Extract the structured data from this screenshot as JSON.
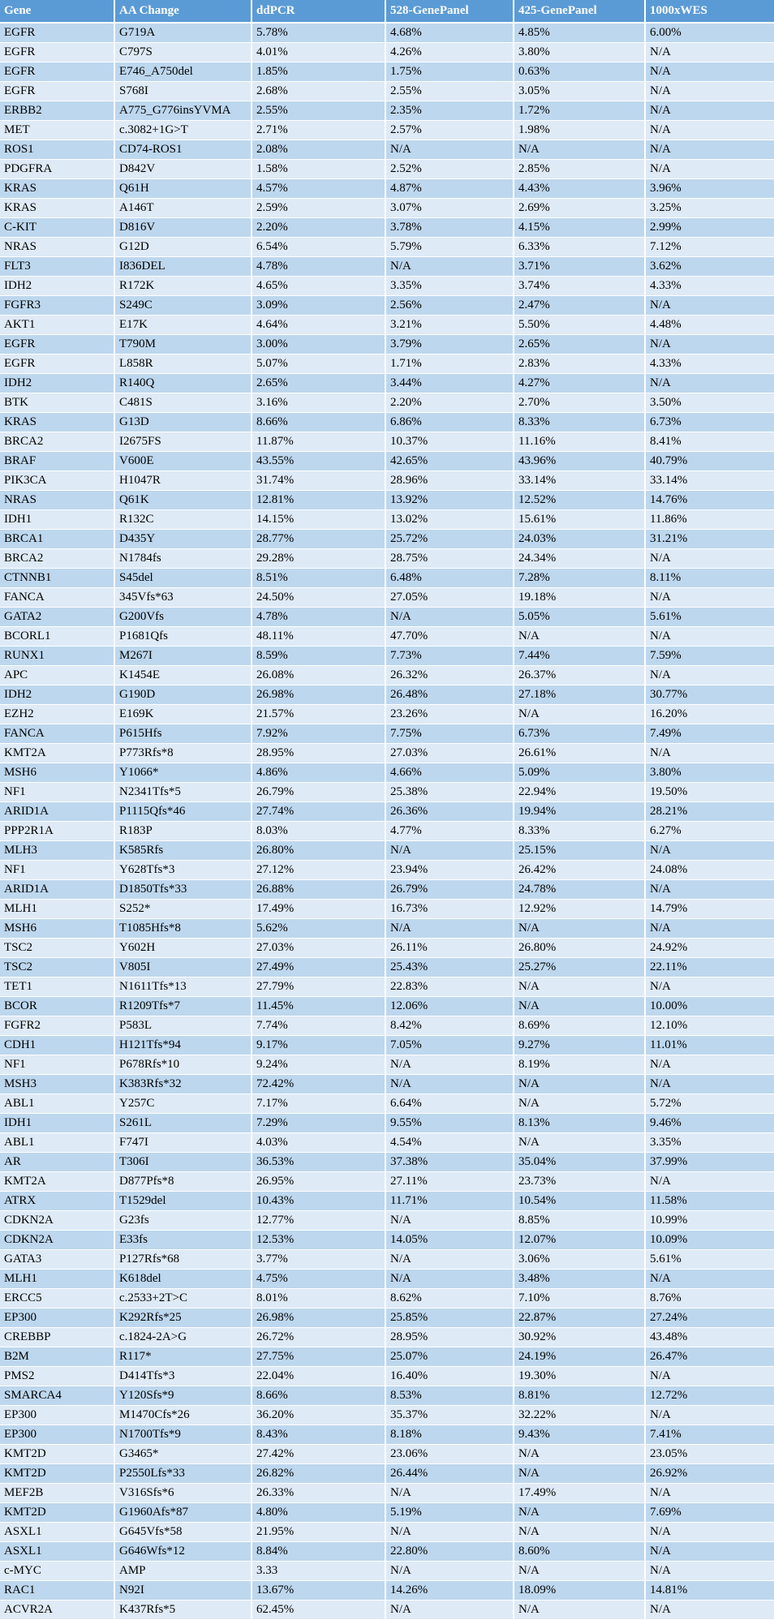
{
  "colors": {
    "header_bg": "#5b9bd5",
    "header_text": "#ffffff",
    "row_odd": "#bdd7ee",
    "row_even": "#deeaf6",
    "grid": "#ffffff",
    "body_text": "#000000"
  },
  "chart_data": {
    "type": "table",
    "columns": [
      "Gene",
      "AA Change",
      "ddPCR",
      "528-GenePanel",
      "425-GenePanel",
      "1000xWES"
    ],
    "column_keys": [
      "gene",
      "aa-change",
      "ddpcr",
      "panel-528",
      "panel-425",
      "wes-1000x"
    ],
    "rows": [
      [
        "EGFR",
        "G719A",
        "5.78%",
        "4.68%",
        "4.85%",
        "6.00%"
      ],
      [
        "EGFR",
        "C797S",
        "4.01%",
        "4.26%",
        "3.80%",
        "N/A"
      ],
      [
        "EGFR",
        "E746_A750del",
        "1.85%",
        "1.75%",
        "0.63%",
        "N/A"
      ],
      [
        "EGFR",
        "S768I",
        "2.68%",
        "2.55%",
        "3.05%",
        "N/A"
      ],
      [
        "ERBB2",
        "A775_G776insYVMA",
        "2.55%",
        "2.35%",
        "1.72%",
        "N/A"
      ],
      [
        "MET",
        "c.3082+1G>T",
        "2.71%",
        "2.57%",
        "1.98%",
        "N/A"
      ],
      [
        "ROS1",
        "CD74-ROS1",
        "2.08%",
        "N/A",
        "N/A",
        "N/A"
      ],
      [
        "PDGFRA",
        "D842V",
        "1.58%",
        "2.52%",
        "2.85%",
        "N/A"
      ],
      [
        "KRAS",
        "Q61H",
        "4.57%",
        "4.87%",
        "4.43%",
        "3.96%"
      ],
      [
        "KRAS",
        "A146T",
        "2.59%",
        "3.07%",
        "2.69%",
        "3.25%"
      ],
      [
        "C-KIT",
        "D816V",
        "2.20%",
        "3.78%",
        "4.15%",
        "2.99%"
      ],
      [
        "NRAS",
        "G12D",
        "6.54%",
        "5.79%",
        "6.33%",
        "7.12%"
      ],
      [
        "FLT3",
        "I836DEL",
        "4.78%",
        "N/A",
        "3.71%",
        "3.62%"
      ],
      [
        "IDH2",
        "R172K",
        "4.65%",
        "3.35%",
        "3.74%",
        "4.33%"
      ],
      [
        "FGFR3",
        "S249C",
        "3.09%",
        "2.56%",
        "2.47%",
        "N/A"
      ],
      [
        "AKT1",
        "E17K",
        "4.64%",
        "3.21%",
        "5.50%",
        "4.48%"
      ],
      [
        "EGFR",
        "T790M",
        "3.00%",
        "3.79%",
        "2.65%",
        "N/A"
      ],
      [
        "EGFR",
        "L858R",
        "5.07%",
        "1.71%",
        "2.83%",
        "4.33%"
      ],
      [
        "IDH2",
        "R140Q",
        "2.65%",
        "3.44%",
        "4.27%",
        "N/A"
      ],
      [
        "BTK",
        "C481S",
        "3.16%",
        "2.20%",
        "2.70%",
        "3.50%"
      ],
      [
        "KRAS",
        "G13D",
        "8.66%",
        "6.86%",
        "8.33%",
        "6.73%"
      ],
      [
        "BRCA2",
        "I2675FS",
        "11.87%",
        "10.37%",
        "11.16%",
        "8.41%"
      ],
      [
        "BRAF",
        "V600E",
        "43.55%",
        "42.65%",
        "43.96%",
        "40.79%"
      ],
      [
        "PIK3CA",
        "H1047R",
        "31.74%",
        "28.96%",
        "33.14%",
        "33.14%"
      ],
      [
        "NRAS",
        "Q61K",
        "12.81%",
        "13.92%",
        "12.52%",
        "14.76%"
      ],
      [
        "IDH1",
        "R132C",
        "14.15%",
        "13.02%",
        "15.61%",
        "11.86%"
      ],
      [
        "BRCA1",
        "D435Y",
        "28.77%",
        "25.72%",
        "24.03%",
        "31.21%"
      ],
      [
        "BRCA2",
        "N1784fs",
        "29.28%",
        "28.75%",
        "24.34%",
        "N/A"
      ],
      [
        "CTNNB1",
        "S45del",
        "8.51%",
        "6.48%",
        "7.28%",
        "8.11%"
      ],
      [
        "FANCA",
        "345Vfs*63",
        "24.50%",
        "27.05%",
        "19.18%",
        "N/A"
      ],
      [
        "GATA2",
        "G200Vfs",
        "4.78%",
        "N/A",
        "5.05%",
        "5.61%"
      ],
      [
        "BCORL1",
        "P1681Qfs",
        "48.11%",
        "47.70%",
        "N/A",
        "N/A"
      ],
      [
        "RUNX1",
        "M267I",
        "8.59%",
        "7.73%",
        "7.44%",
        "7.59%"
      ],
      [
        "APC",
        "K1454E",
        "26.08%",
        "26.32%",
        "26.37%",
        "N/A"
      ],
      [
        "IDH2",
        "G190D",
        "26.98%",
        "26.48%",
        "27.18%",
        "30.77%"
      ],
      [
        "EZH2",
        "E169K",
        "21.57%",
        "23.26%",
        "N/A",
        "16.20%"
      ],
      [
        "FANCA",
        "P615Hfs",
        "7.92%",
        "7.75%",
        "6.73%",
        "7.49%"
      ],
      [
        "KMT2A",
        "P773Rfs*8",
        "28.95%",
        "27.03%",
        "26.61%",
        "N/A"
      ],
      [
        "MSH6",
        "Y1066*",
        "4.86%",
        "4.66%",
        "5.09%",
        "3.80%"
      ],
      [
        "NF1",
        "N2341Tfs*5",
        "26.79%",
        "25.38%",
        "22.94%",
        "19.50%"
      ],
      [
        "ARID1A",
        "P1115Qfs*46",
        "27.74%",
        "26.36%",
        "19.94%",
        "28.21%"
      ],
      [
        "PPP2R1A",
        "R183P",
        "8.03%",
        "4.77%",
        "8.33%",
        "6.27%"
      ],
      [
        "MLH3",
        "K585Rfs",
        "26.80%",
        "N/A",
        "25.15%",
        "N/A"
      ],
      [
        "NF1",
        "Y628Tfs*3",
        "27.12%",
        "23.94%",
        "26.42%",
        "24.08%"
      ],
      [
        "ARID1A",
        "D1850Tfs*33",
        "26.88%",
        "26.79%",
        "24.78%",
        "N/A"
      ],
      [
        "MLH1",
        "S252*",
        "17.49%",
        "16.73%",
        "12.92%",
        "14.79%"
      ],
      [
        "MSH6",
        "T1085Hfs*8",
        "5.62%",
        "N/A",
        "N/A",
        "N/A"
      ],
      [
        "TSC2",
        "Y602H",
        "27.03%",
        "26.11%",
        "26.80%",
        "24.92%"
      ],
      [
        "TSC2",
        "V805I",
        "27.49%",
        "25.43%",
        "25.27%",
        "22.11%"
      ],
      [
        "TET1",
        "N1611Tfs*13",
        "27.79%",
        "22.83%",
        "N/A",
        "N/A"
      ],
      [
        "BCOR",
        "R1209Tfs*7",
        "11.45%",
        "12.06%",
        "N/A",
        "10.00%"
      ],
      [
        "FGFR2",
        "P583L",
        "7.74%",
        "8.42%",
        "8.69%",
        "12.10%"
      ],
      [
        "CDH1",
        "H121Tfs*94",
        "9.17%",
        "7.05%",
        "9.27%",
        "11.01%"
      ],
      [
        "NF1",
        "P678Rfs*10",
        "9.24%",
        "N/A",
        "8.19%",
        "N/A"
      ],
      [
        "MSH3",
        "K383Rfs*32",
        "72.42%",
        "N/A",
        "N/A",
        "N/A"
      ],
      [
        "ABL1",
        "Y257C",
        "7.17%",
        "6.64%",
        "N/A",
        "5.72%"
      ],
      [
        "IDH1",
        "S261L",
        "7.29%",
        "9.55%",
        "8.13%",
        "9.46%"
      ],
      [
        "ABL1",
        "F747I",
        "4.03%",
        "4.54%",
        "N/A",
        "3.35%"
      ],
      [
        "AR",
        "T306I",
        "36.53%",
        "37.38%",
        "35.04%",
        "37.99%"
      ],
      [
        "KMT2A",
        "D877Pfs*8",
        "26.95%",
        "27.11%",
        "23.73%",
        "N/A"
      ],
      [
        "ATRX",
        "T1529del",
        "10.43%",
        "11.71%",
        "10.54%",
        "11.58%"
      ],
      [
        "CDKN2A",
        "G23fs",
        "12.77%",
        "N/A",
        "8.85%",
        "10.99%"
      ],
      [
        "CDKN2A",
        "E33fs",
        "12.53%",
        "14.05%",
        "12.07%",
        "10.09%"
      ],
      [
        "GATA3",
        "P127Rfs*68",
        "3.77%",
        "N/A",
        "3.06%",
        "5.61%"
      ],
      [
        "MLH1",
        "K618del",
        "4.75%",
        "N/A",
        "3.48%",
        "N/A"
      ],
      [
        "ERCC5",
        "c.2533+2T>C",
        "8.01%",
        "8.62%",
        "7.10%",
        "8.76%"
      ],
      [
        "EP300",
        "K292Rfs*25",
        "26.98%",
        "25.85%",
        "22.87%",
        "27.24%"
      ],
      [
        "CREBBP",
        "c.1824-2A>G",
        "26.72%",
        "28.95%",
        "30.92%",
        "43.48%"
      ],
      [
        "B2M",
        "R117*",
        "27.75%",
        "25.07%",
        "24.19%",
        "26.47%"
      ],
      [
        "PMS2",
        "D414Tfs*3",
        "22.04%",
        "16.40%",
        "19.30%",
        "N/A"
      ],
      [
        "SMARCA4",
        "Y120Sfs*9",
        "8.66%",
        "8.53%",
        "8.81%",
        "12.72%"
      ],
      [
        "EP300",
        "M1470Cfs*26",
        "36.20%",
        "35.37%",
        "32.22%",
        "N/A"
      ],
      [
        "EP300",
        "N1700Tfs*9",
        "8.43%",
        "8.18%",
        "9.43%",
        "7.41%"
      ],
      [
        "KMT2D",
        "G3465*",
        "27.42%",
        "23.06%",
        "N/A",
        "23.05%"
      ],
      [
        "KMT2D",
        "P2550Lfs*33",
        "26.82%",
        "26.44%",
        "N/A",
        "26.92%"
      ],
      [
        "MEF2B",
        "V316Sfs*6",
        "26.33%",
        "N/A",
        "17.49%",
        "N/A"
      ],
      [
        "KMT2D",
        "G1960Afs*87",
        "4.80%",
        "5.19%",
        "N/A",
        "7.69%"
      ],
      [
        "ASXL1",
        "G645Vfs*58",
        "21.95%",
        "N/A",
        "N/A",
        "N/A"
      ],
      [
        "ASXL1",
        "G646Wfs*12",
        "8.84%",
        "22.80%",
        "8.60%",
        "N/A"
      ],
      [
        "c-MYC",
        "AMP",
        "3.33",
        "N/A",
        "N/A",
        "N/A"
      ],
      [
        "RAC1",
        "N92I",
        "13.67%",
        "14.26%",
        "18.09%",
        "14.81%"
      ],
      [
        "ACVR2A",
        "K437Rfs*5",
        "62.45%",
        "N/A",
        "N/A",
        "N/A"
      ]
    ]
  }
}
